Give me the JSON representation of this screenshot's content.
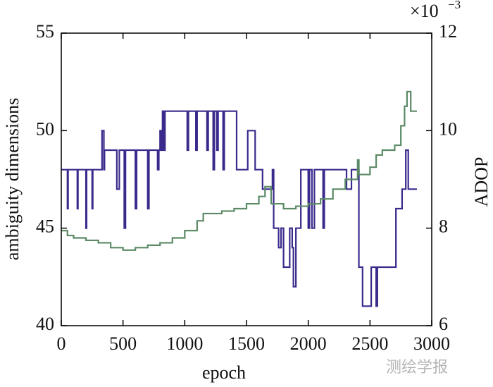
{
  "chart_data": {
    "type": "line",
    "step": "post",
    "xlabel": "epoch",
    "ylabel": "ambiguity dimensions",
    "y2label": "ADOP",
    "annotation": {
      "base": "×10",
      "exponent": "−3"
    },
    "watermark": "测绘学报",
    "xlim": [
      0,
      3000
    ],
    "xticks": [
      0,
      500,
      1000,
      1500,
      2000,
      2500,
      3000
    ],
    "ylim": [
      40,
      55
    ],
    "yticks": [
      40,
      45,
      50,
      55
    ],
    "y2lim": [
      6,
      12
    ],
    "y2ticks": [
      6,
      8,
      10,
      12
    ],
    "series": [
      {
        "name": "ambiguity dimensions",
        "color": "#3b2a8c",
        "x": [
          0,
          50,
          55,
          130,
          135,
          200,
          205,
          250,
          255,
          330,
          345,
          350,
          450,
          470,
          510,
          520,
          600,
          610,
          700,
          710,
          780,
          790,
          800,
          810,
          820,
          830,
          840,
          1020,
          1030,
          1090,
          1100,
          1180,
          1190,
          1230,
          1240,
          1260,
          1270,
          1310,
          1320,
          1420,
          1510,
          1560,
          1570,
          1630,
          1710,
          1720,
          1760,
          1780,
          1800,
          1850,
          1870,
          1880,
          1900,
          1940,
          2000,
          2010,
          2030,
          2050,
          2120,
          2130,
          2310,
          2350,
          2410,
          2440,
          2510,
          2550,
          2560,
          2710,
          2760,
          2790,
          2810,
          2880
        ],
        "values": [
          48,
          46,
          48,
          46,
          48,
          45,
          48,
          46,
          48,
          50,
          48,
          49,
          47,
          49,
          45,
          49,
          46,
          49,
          46,
          49,
          48,
          49,
          50,
          49,
          51,
          49,
          51,
          49,
          51,
          49,
          51,
          49,
          51,
          48,
          51,
          49,
          51,
          48,
          51,
          48,
          50,
          50,
          48,
          47,
          48,
          45,
          44,
          45,
          43,
          45,
          44,
          42,
          45,
          48,
          45,
          48,
          45,
          48,
          45,
          48,
          47,
          48,
          43,
          41,
          43,
          41,
          43,
          46,
          47,
          49,
          47,
          47
        ]
      },
      {
        "name": "ADOP",
        "color": "#5b8a66",
        "axis": "y2",
        "x": [
          0,
          50,
          100,
          200,
          300,
          400,
          500,
          600,
          700,
          800,
          900,
          1000,
          1100,
          1150,
          1200,
          1300,
          1400,
          1500,
          1600,
          1650,
          1700,
          1800,
          1900,
          2000,
          2100,
          2200,
          2300,
          2400,
          2410,
          2500,
          2550,
          2600,
          2700,
          2750,
          2780,
          2800,
          2830,
          2880
        ],
        "values": [
          7.95,
          7.85,
          7.8,
          7.75,
          7.7,
          7.6,
          7.55,
          7.6,
          7.65,
          7.7,
          7.8,
          7.95,
          8.15,
          8.3,
          8.3,
          8.35,
          8.4,
          8.5,
          8.65,
          8.85,
          8.5,
          8.4,
          8.45,
          8.5,
          8.6,
          8.8,
          9.0,
          9.4,
          9.1,
          9.25,
          9.5,
          9.6,
          9.7,
          10.1,
          10.5,
          10.8,
          10.4,
          10.4
        ]
      }
    ]
  }
}
